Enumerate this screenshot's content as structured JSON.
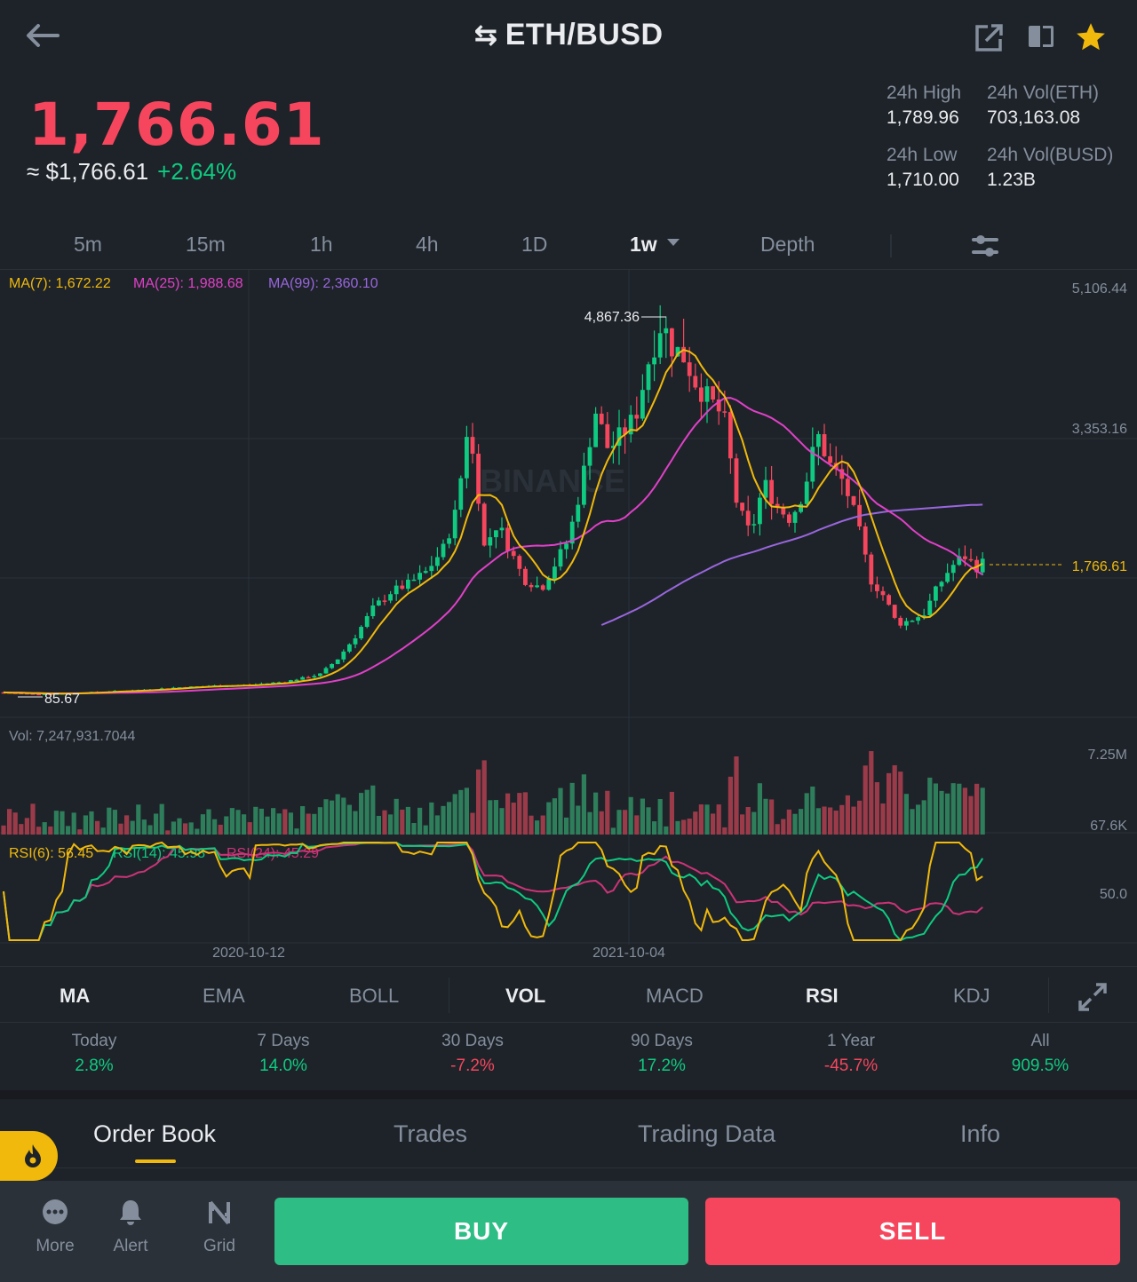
{
  "header": {
    "pair": "ETH/BUSD",
    "swap_glyph": "⇆"
  },
  "price": {
    "last": "1,766.61",
    "fiat": "≈ $1,766.61",
    "change": "+2.64%"
  },
  "stats": {
    "high_label": "24h High",
    "high_value": "1,789.96",
    "low_label": "24h Low",
    "low_value": "1,710.00",
    "vol_base_label": "24h Vol(ETH)",
    "vol_base_value": "703,163.08",
    "vol_quote_label": "24h Vol(BUSD)",
    "vol_quote_value": "1.23B"
  },
  "intervals": [
    "5m",
    "15m",
    "1h",
    "4h",
    "1D",
    "1w",
    "Depth"
  ],
  "active_interval": "1w",
  "indicators": {
    "ma7": "MA(7): 1,672.22",
    "ma25": "MA(25): 1,988.68",
    "ma99": "MA(99): 2,360.10",
    "vol": "Vol: 7,247,931.7044",
    "rsi6": "RSI(6): 56.45",
    "rsi14": "RSI(14): 45.98",
    "rsi24": "RSI(24): 45.29"
  },
  "axis": {
    "price_ticks": [
      "5,106.44",
      "3,353.16",
      "1,766.61"
    ],
    "vol_ticks": [
      "7.25M",
      "67.6K"
    ],
    "rsi_tick": "50.0",
    "dates": [
      "2020-10-12",
      "2021-10-04"
    ],
    "high_marker": "4,867.36",
    "low_marker": "85.67",
    "watermark": "BINANCE"
  },
  "chart_data": {
    "type": "candlestick",
    "interval": "1w",
    "y_price_ticks": [
      5106.44,
      3353.16
    ],
    "last_price": 1766.61,
    "highest": 4867.36,
    "lowest": 85.67,
    "x_labels": [
      "2020-10-12",
      "2021-10-04"
    ],
    "ma": {
      "ma7": 1672.22,
      "ma25": 1988.68,
      "ma99": 2360.1
    },
    "volume_last": 7247931.7044,
    "rsi": {
      "rsi6": 56.45,
      "rsi14": 45.98,
      "rsi24": 45.29
    }
  },
  "indicator_tabs": [
    "MA",
    "EMA",
    "BOLL",
    "VOL",
    "MACD",
    "RSI",
    "KDJ"
  ],
  "active_indicator_tabs": [
    "MA",
    "VOL",
    "RSI"
  ],
  "performance": [
    {
      "label": "Today",
      "value": "2.8%",
      "dir": "pos"
    },
    {
      "label": "7 Days",
      "value": "14.0%",
      "dir": "pos"
    },
    {
      "label": "30 Days",
      "value": "-7.2%",
      "dir": "neg"
    },
    {
      "label": "90 Days",
      "value": "17.2%",
      "dir": "pos"
    },
    {
      "label": "1 Year",
      "value": "-45.7%",
      "dir": "neg"
    },
    {
      "label": "All",
      "value": "909.5%",
      "dir": "pos"
    }
  ],
  "bottom_tabs": [
    "Order Book",
    "Trades",
    "Trading Data",
    "Info"
  ],
  "bottom_bar": {
    "more": "More",
    "alert": "Alert",
    "grid": "Grid",
    "buy": "BUY",
    "sell": "SELL"
  },
  "colors": {
    "up": "#0ecb81",
    "down": "#f6465d",
    "accent": "#f0b90b",
    "ma7": "#f0b90b",
    "ma25": "#e040c8",
    "ma99": "#9966dd"
  }
}
